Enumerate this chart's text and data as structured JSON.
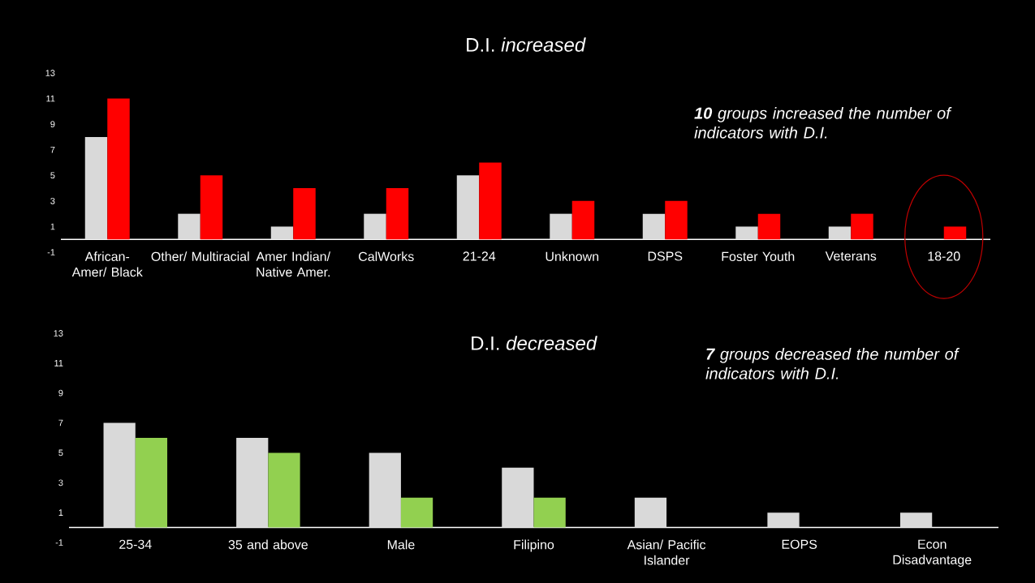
{
  "chart_data": [
    {
      "type": "bar",
      "title": "D.I. *increased*",
      "categories": [
        "African-Amer/ Black",
        "Other/ Multiracial",
        "Amer Indian/ Native Amer.",
        "CalWorks",
        "21-24",
        "Unknown",
        "DSPS",
        "Foster Youth",
        "Veterans",
        "18-20"
      ],
      "series": [
        {
          "color": "#d9d9d9",
          "values": [
            8,
            2,
            1,
            2,
            5,
            2,
            2,
            1,
            1,
            0
          ]
        },
        {
          "color": "#ff0000",
          "values": [
            11,
            5,
            4,
            4,
            6,
            3,
            3,
            2,
            2,
            1
          ]
        }
      ],
      "ylim": [
        -1,
        13
      ],
      "yticks": [
        -1,
        1,
        3,
        5,
        7,
        9,
        11,
        13
      ],
      "annotations": [
        "**10** groups increased the number of indicators with D.I."
      ]
    },
    {
      "type": "bar",
      "title": "D.I. *decreased*",
      "categories": [
        "25-34",
        "35 and above",
        "Male",
        "Filipino",
        "Asian/ Pacific Islander",
        "EOPS",
        "Econ Disadvantage"
      ],
      "series": [
        {
          "color": "#d9d9d9",
          "values": [
            7,
            6,
            5,
            4,
            2,
            1,
            1
          ]
        },
        {
          "color": "#92d050",
          "values": [
            6,
            5,
            2,
            2,
            0,
            0,
            0
          ]
        }
      ],
      "ylim": [
        -1,
        13
      ],
      "yticks": [
        -1,
        1,
        3,
        5,
        7,
        9,
        11,
        13
      ],
      "annotations": [
        "**7** groups decreased the number of indicators with D.I."
      ]
    }
  ]
}
